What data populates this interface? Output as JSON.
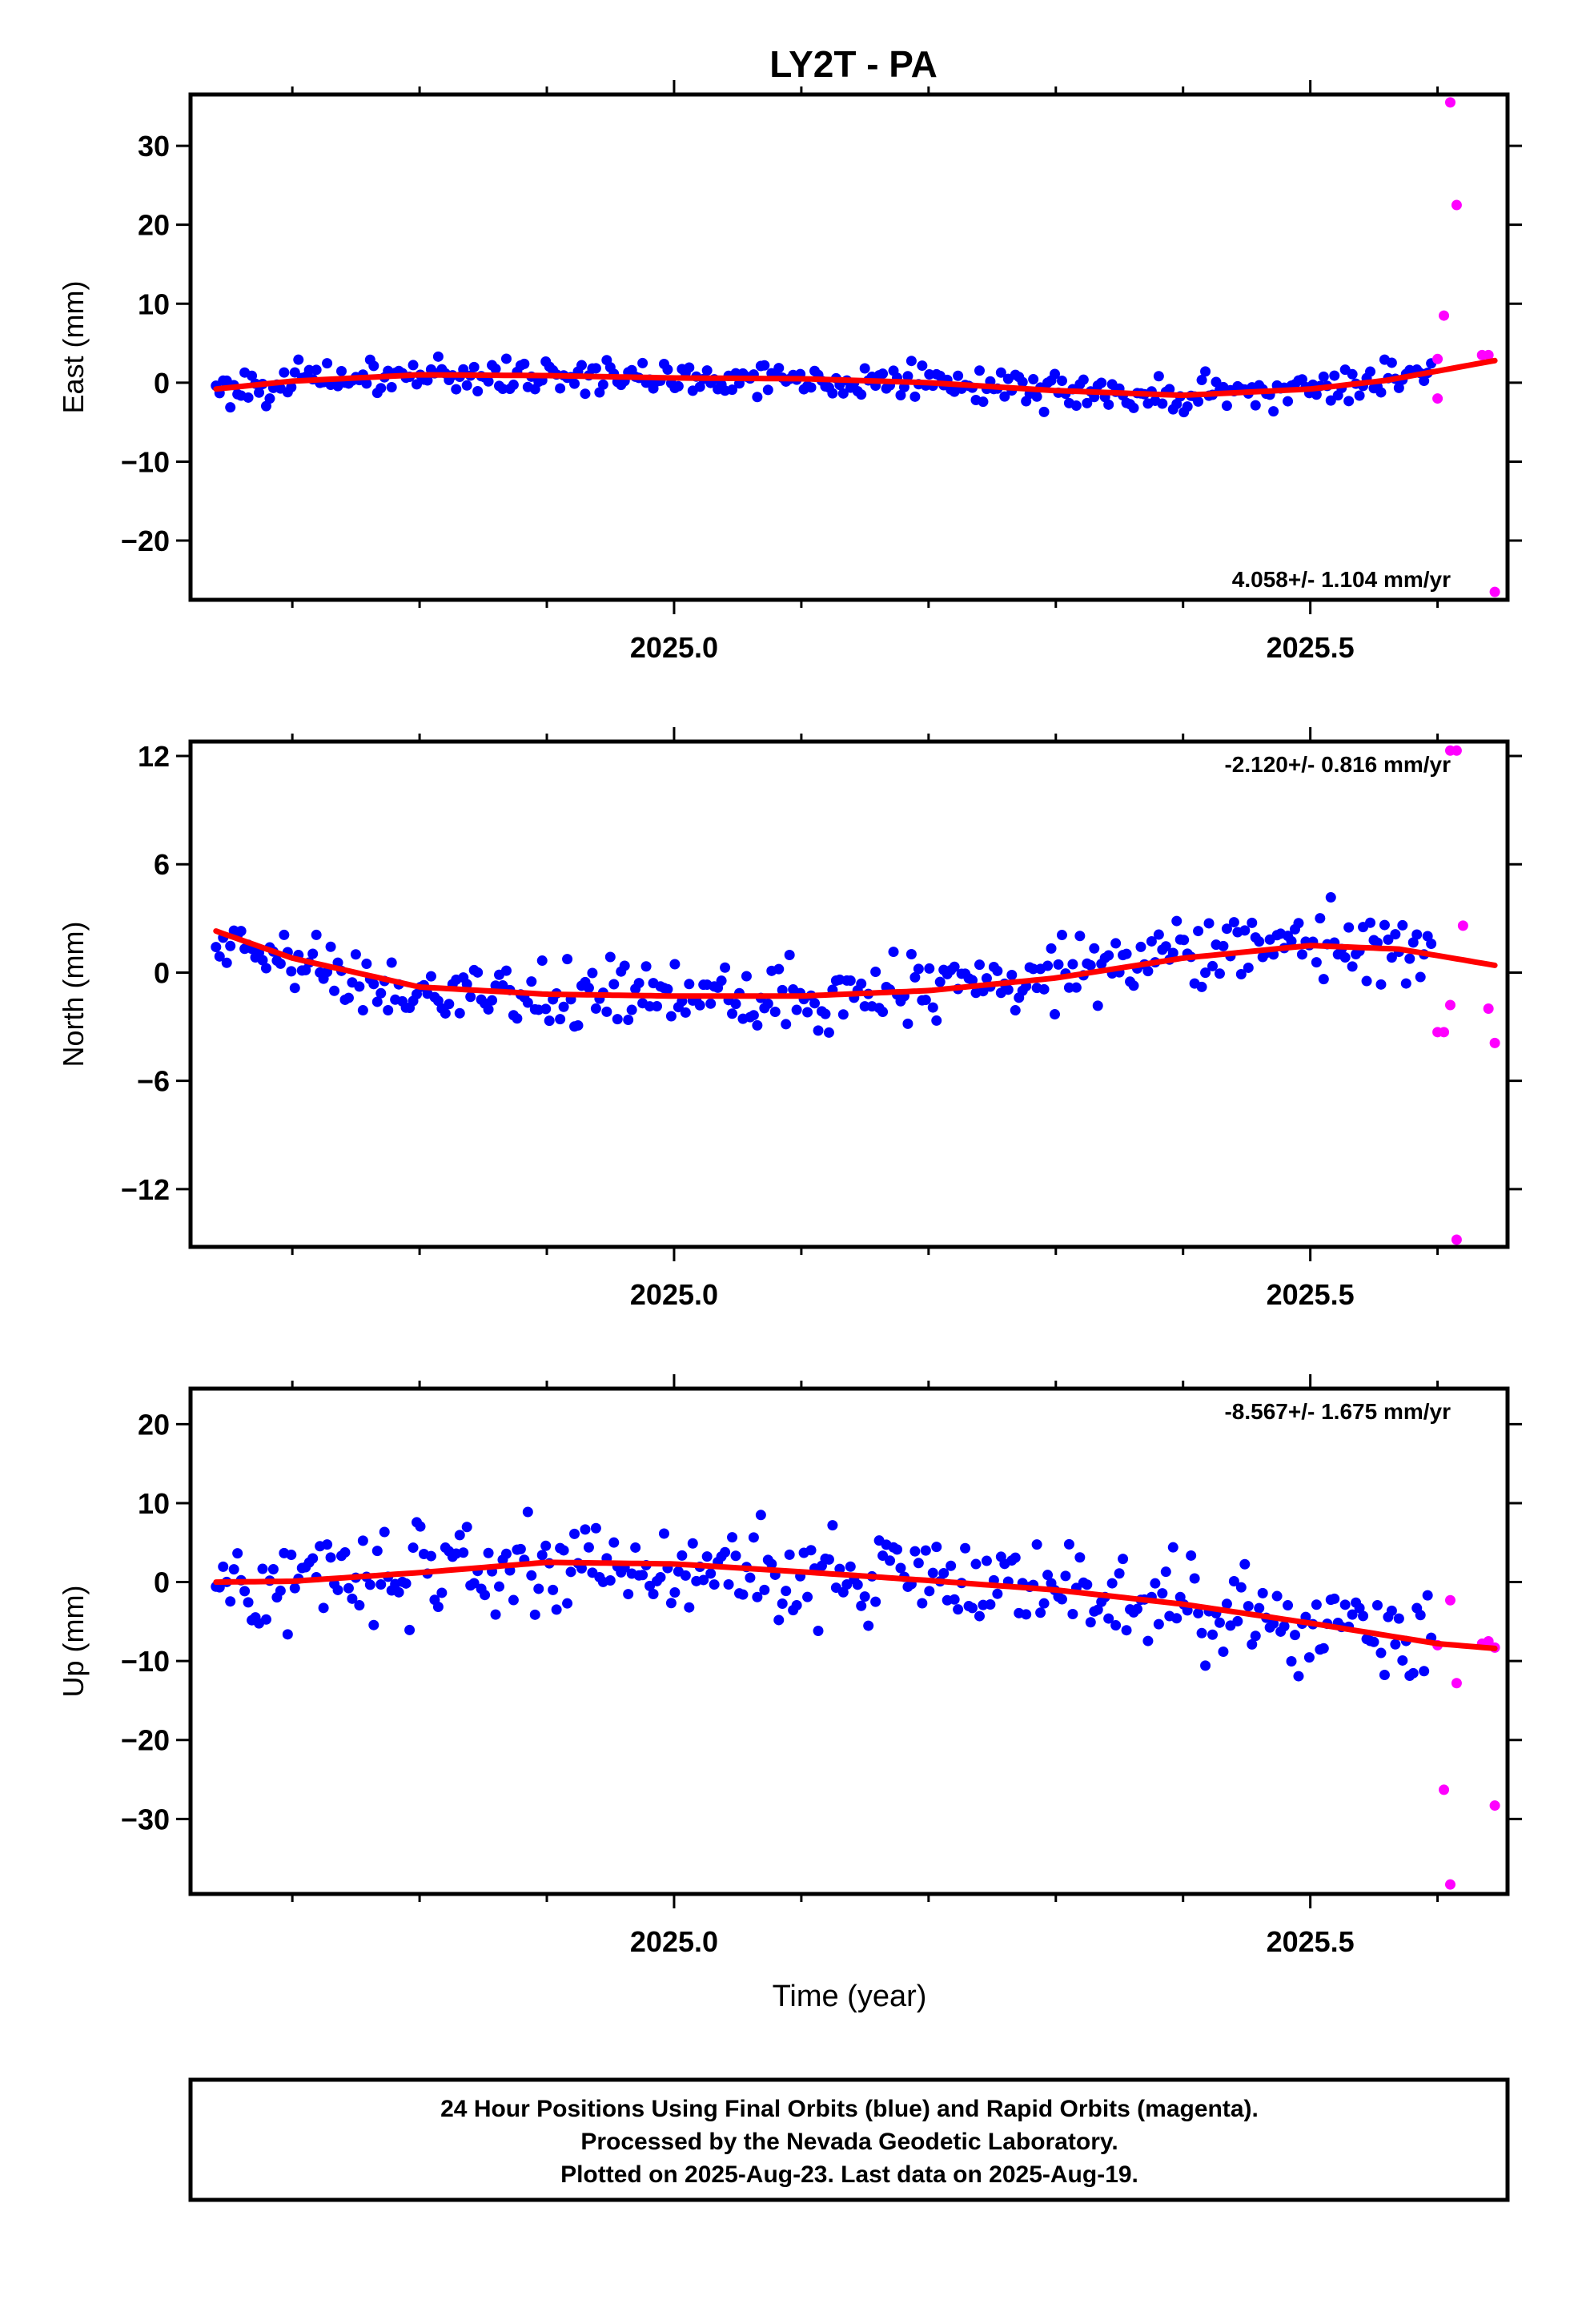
{
  "title": "LY2T - PA",
  "colors": {
    "final": "#0000ff",
    "rapid": "#ff00ff",
    "fit": "#ff0000",
    "frame": "#000000"
  },
  "footer": [
    "24 Hour Positions Using Final Orbits (blue) and Rapid Orbits (magenta).",
    "Processed by the Nevada Geodetic Laboratory.",
    "Plotted on 2025-Aug-23. Last data on 2025-Aug-19."
  ],
  "chart_data": [
    {
      "type": "scatter",
      "ylabel": "East (mm)",
      "xlabel": "",
      "rate": "4.058+/- 1.104 mm/yr",
      "rate_position": "bottom-right",
      "xlim": [
        2024.62,
        2025.655
      ],
      "ylim": [
        -27.5,
        36.5
      ],
      "yticks": [
        -20,
        -10,
        0,
        10,
        20,
        30
      ],
      "ytick_labels": [
        "−20",
        "−10",
        "0",
        "10",
        "20",
        "30"
      ],
      "xticks": [
        2025.0,
        2025.5
      ],
      "xtick_labels": [
        "2025.0",
        "2025.5"
      ],
      "grid": false,
      "fit": {
        "x": [
          2024.64,
          2024.7,
          2024.8,
          2024.9,
          2025.0,
          2025.1,
          2025.2,
          2025.3,
          2025.4,
          2025.5,
          2025.56,
          2025.645
        ],
        "y": [
          -0.8,
          0.2,
          1.0,
          0.9,
          0.6,
          0.5,
          0.0,
          -1.0,
          -1.6,
          -0.8,
          0.3,
          2.8
        ]
      },
      "rapid": {
        "x": [
          2025.6,
          2025.61,
          2025.615,
          2025.605,
          2025.6,
          2025.635,
          2025.64,
          2025.645
        ],
        "y": [
          3.0,
          35.5,
          22.5,
          8.5,
          -2.0,
          3.5,
          3.5,
          -26.5
        ]
      },
      "final_range": [
        2024.64,
        2025.595
      ],
      "final_seed": 101,
      "final_noise": 1.7,
      "final_count": 340
    },
    {
      "type": "scatter",
      "ylabel": "North (mm)",
      "xlabel": "",
      "rate": "-2.120+/- 0.816 mm/yr",
      "rate_position": "top-right",
      "xlim": [
        2024.62,
        2025.655
      ],
      "ylim": [
        -15.2,
        12.8
      ],
      "yticks": [
        -12,
        -6,
        0,
        6,
        12
      ],
      "ytick_labels": [
        "−12",
        "−6",
        "0",
        "6",
        "12"
      ],
      "xticks": [
        2025.0,
        2025.5
      ],
      "xtick_labels": [
        "2025.0",
        "2025.5"
      ],
      "grid": false,
      "fit": {
        "x": [
          2024.64,
          2024.7,
          2024.8,
          2024.9,
          2025.0,
          2025.1,
          2025.2,
          2025.3,
          2025.4,
          2025.5,
          2025.57,
          2025.645
        ],
        "y": [
          2.3,
          0.8,
          -0.8,
          -1.2,
          -1.3,
          -1.3,
          -1.0,
          -0.3,
          0.8,
          1.5,
          1.3,
          0.4
        ]
      },
      "rapid": {
        "x": [
          2025.6,
          2025.605,
          2025.61,
          2025.615,
          2025.62,
          2025.64,
          2025.645,
          2025.61,
          2025.615
        ],
        "y": [
          -3.3,
          -3.3,
          -1.8,
          12.3,
          2.6,
          -2.0,
          -3.9,
          12.3,
          -14.8
        ]
      },
      "final_range": [
        2024.64,
        2025.595
      ],
      "final_seed": 202,
      "final_noise": 1.5,
      "final_count": 340
    },
    {
      "type": "scatter",
      "ylabel": "Up (mm)",
      "xlabel": "Time (year)",
      "rate": "-8.567+/- 1.675 mm/yr",
      "rate_position": "top-right",
      "xlim": [
        2024.62,
        2025.655
      ],
      "ylim": [
        -39.5,
        24.5
      ],
      "yticks": [
        -30,
        -20,
        -10,
        0,
        10,
        20
      ],
      "ytick_labels": [
        "−30",
        "−20",
        "−10",
        "0",
        "10",
        "20"
      ],
      "xticks": [
        2025.0,
        2025.5
      ],
      "xtick_labels": [
        "2025.0",
        "2025.5"
      ],
      "grid": false,
      "fit": {
        "x": [
          2024.64,
          2024.7,
          2024.8,
          2024.9,
          2025.0,
          2025.1,
          2025.2,
          2025.3,
          2025.4,
          2025.5,
          2025.6,
          2025.645
        ],
        "y": [
          0.0,
          0.1,
          1.2,
          2.5,
          2.3,
          1.3,
          0.2,
          -1.0,
          -2.8,
          -5.2,
          -7.8,
          -8.4
        ]
      },
      "rapid": {
        "x": [
          2025.6,
          2025.61,
          2025.615,
          2025.605,
          2025.61,
          2025.635,
          2025.64,
          2025.645,
          2025.645
        ],
        "y": [
          -8.0,
          -2.3,
          -12.8,
          -26.3,
          -38.3,
          -7.8,
          -7.5,
          -8.3,
          -28.3
        ]
      },
      "final_range": [
        2024.64,
        2025.595
      ],
      "final_seed": 303,
      "final_noise": 4.5,
      "final_count": 340
    }
  ]
}
